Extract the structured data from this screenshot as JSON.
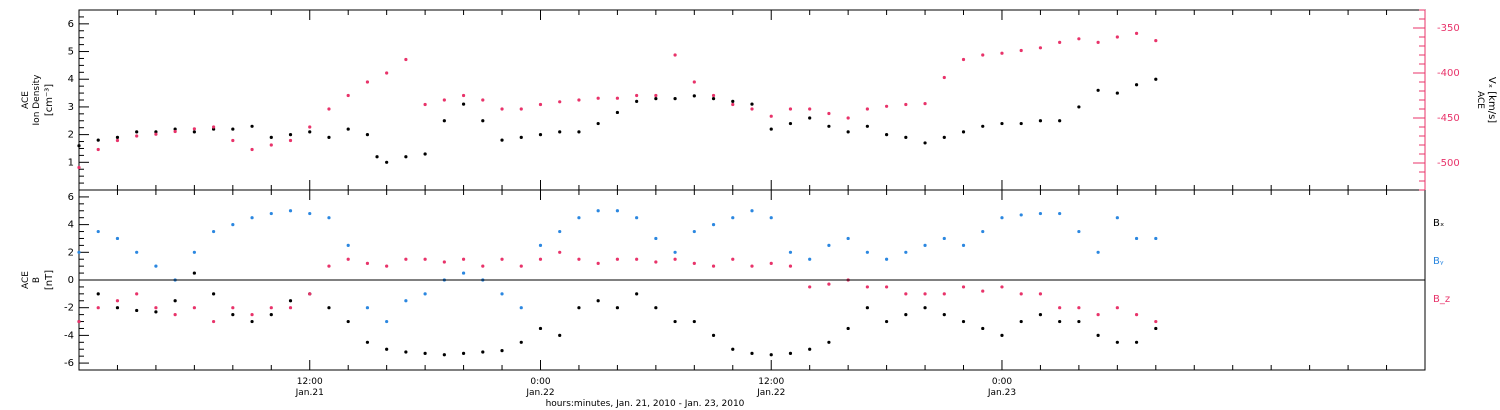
{
  "chart_data": [
    {
      "type": "scatter",
      "panel": "top",
      "left_axis": {
        "label_lines": [
          "ACE",
          "Ion Density"
        ],
        "units": "[cm⁻³]",
        "ylim": [
          0,
          6.5
        ],
        "ticks": [
          1,
          2,
          3,
          4,
          5,
          6
        ],
        "tick_labels": [
          "1",
          "2",
          "3",
          "4",
          "5",
          "6"
        ],
        "color": "#000000"
      },
      "right_axis": {
        "label_lines": [
          "ACE"
        ],
        "units": "Vₓ [km/s]",
        "ylim": [
          -530,
          -330
        ],
        "ticks": [
          -500,
          -450,
          -400,
          -350
        ],
        "tick_labels": [
          "-500",
          "-450",
          "-400",
          "-350"
        ],
        "color": "#e8336a"
      },
      "series": [
        {
          "color": "#000000",
          "axis": "left",
          "x": [
            0,
            1,
            2,
            3,
            4,
            5,
            6,
            7,
            8,
            9,
            10,
            11,
            12,
            13,
            14,
            15,
            15.5,
            16,
            17,
            18,
            19,
            20,
            21,
            22,
            23,
            24,
            25,
            26,
            27,
            28,
            29,
            30,
            31,
            32,
            33,
            34,
            35,
            36,
            37,
            38,
            39,
            40,
            41,
            42,
            43,
            44,
            45,
            46,
            47,
            48,
            49,
            50,
            51,
            52,
            53,
            54,
            55,
            56
          ],
          "y": [
            1.6,
            1.8,
            1.9,
            2.1,
            2.1,
            2.2,
            2.1,
            2.2,
            2.2,
            2.3,
            1.9,
            2.0,
            2.1,
            1.9,
            2.2,
            2.0,
            1.2,
            1.0,
            1.2,
            1.3,
            2.5,
            3.1,
            2.5,
            1.8,
            1.9,
            2.0,
            2.1,
            2.1,
            2.4,
            2.8,
            3.2,
            3.3,
            3.3,
            3.4,
            3.3,
            3.2,
            3.1,
            2.2,
            2.4,
            2.6,
            2.3,
            2.1,
            2.3,
            2.0,
            1.9,
            1.7,
            1.9,
            2.1,
            2.3,
            2.4,
            2.4,
            2.5,
            2.5,
            3.0,
            3.6,
            3.5,
            3.8,
            4.0
          ]
        },
        {
          "color": "#e8336a",
          "axis": "right",
          "x": [
            0,
            1,
            2,
            3,
            4,
            5,
            6,
            7,
            8,
            9,
            10,
            11,
            12,
            13,
            14,
            15,
            16,
            17,
            18,
            19,
            20,
            21,
            22,
            23,
            24,
            25,
            26,
            27,
            28,
            29,
            30,
            31,
            32,
            33,
            34,
            35,
            36,
            37,
            38,
            39,
            40,
            41,
            42,
            43,
            44,
            45,
            46,
            47,
            48,
            49,
            50,
            51,
            52,
            53,
            54,
            55,
            56
          ],
          "y": [
            -505,
            -485,
            -475,
            -470,
            -468,
            -465,
            -462,
            -460,
            -475,
            -485,
            -480,
            -475,
            -460,
            -440,
            -425,
            -410,
            -400,
            -385,
            -435,
            -430,
            -425,
            -430,
            -440,
            -440,
            -435,
            -432,
            -430,
            -428,
            -428,
            -425,
            -425,
            -380,
            -410,
            -425,
            -435,
            -440,
            -448,
            -440,
            -440,
            -445,
            -450,
            -440,
            -437,
            -435,
            -434,
            -405,
            -385,
            -380,
            -378,
            -375,
            -372,
            -366,
            -362,
            -366,
            -360,
            -356,
            -364
          ]
        }
      ]
    },
    {
      "type": "scatter",
      "panel": "bottom",
      "y_axis": {
        "label_lines": [
          "ACE",
          "B"
        ],
        "units": "[nT]",
        "ylim": [
          -6.5,
          6.5
        ],
        "ticks": [
          -6,
          -4,
          -2,
          0,
          2,
          4,
          6
        ],
        "tick_labels": [
          "-6",
          "-4",
          "-2",
          "0",
          "2",
          "4",
          "6"
        ]
      },
      "legend_position": "right",
      "series": [
        {
          "name": "Bₓ",
          "color": "#000000",
          "x": [
            0,
            1,
            2,
            3,
            4,
            5,
            6,
            7,
            8,
            9,
            10,
            11,
            12,
            13,
            14,
            15,
            16,
            17,
            18,
            19,
            20,
            21,
            22,
            23,
            24,
            25,
            26,
            27,
            28,
            29,
            30,
            31,
            32,
            33,
            34,
            35,
            36,
            37,
            38,
            39,
            40,
            41,
            42,
            43,
            44,
            45,
            46,
            47,
            48,
            49,
            50,
            51,
            52,
            53,
            54,
            55,
            56
          ],
          "y": [
            -3.0,
            -1.0,
            -2.0,
            -2.2,
            -2.3,
            -1.5,
            0.5,
            -1.0,
            -2.5,
            -3.0,
            -2.5,
            -1.5,
            -1.0,
            -2.0,
            -3.0,
            -4.5,
            -5.0,
            -5.2,
            -5.3,
            -5.4,
            -5.3,
            -5.2,
            -5.1,
            -4.5,
            -3.5,
            -4.0,
            -2.0,
            -1.5,
            -2.0,
            -1.0,
            -2.0,
            -3.0,
            -3.0,
            -4.0,
            -5.0,
            -5.3,
            -5.4,
            -5.3,
            -5.0,
            -4.5,
            -3.5,
            -2.0,
            -3.0,
            -2.5,
            -2.0,
            -2.5,
            -3.0,
            -3.5,
            -4.0,
            -3.0,
            -2.5,
            -3.0,
            -3.0,
            -4.0,
            -4.5,
            -4.5,
            -3.5
          ]
        },
        {
          "name": "Bᵧ",
          "color": "#2b87e0",
          "x": [
            0,
            1,
            2,
            3,
            4,
            5,
            6,
            7,
            8,
            9,
            10,
            11,
            12,
            13,
            14,
            15,
            16,
            17,
            18,
            19,
            20,
            21,
            22,
            23,
            24,
            25,
            26,
            27,
            28,
            29,
            30,
            31,
            32,
            33,
            34,
            35,
            36,
            37,
            38,
            39,
            40,
            41,
            42,
            43,
            44,
            45,
            46,
            47,
            48,
            49,
            50,
            51,
            52,
            53,
            54,
            55,
            56
          ],
          "y": [
            2.0,
            3.5,
            3.0,
            2.0,
            1.0,
            0.0,
            2.0,
            3.5,
            4.0,
            4.5,
            4.8,
            5.0,
            4.8,
            4.5,
            2.5,
            -2.0,
            -3.0,
            -1.5,
            -1.0,
            0.0,
            0.5,
            0.0,
            -1.0,
            -2.0,
            2.5,
            3.5,
            4.5,
            5.0,
            5.0,
            4.5,
            3.0,
            2.0,
            3.5,
            4.0,
            4.5,
            5.0,
            4.5,
            2.0,
            1.5,
            2.5,
            3.0,
            2.0,
            1.5,
            2.0,
            2.5,
            3.0,
            2.5,
            3.5,
            4.5,
            4.7,
            4.8,
            4.8,
            3.5,
            2.0,
            4.5,
            3.0,
            3.0
          ]
        },
        {
          "name": "B_z",
          "color": "#e8336a",
          "x": [
            0,
            1,
            2,
            3,
            4,
            5,
            6,
            7,
            8,
            9,
            10,
            11,
            12,
            13,
            14,
            15,
            16,
            17,
            18,
            19,
            20,
            21,
            22,
            23,
            24,
            25,
            26,
            27,
            28,
            29,
            30,
            31,
            32,
            33,
            34,
            35,
            36,
            37,
            38,
            39,
            40,
            41,
            42,
            43,
            44,
            45,
            46,
            47,
            48,
            49,
            50,
            51,
            52,
            53,
            54,
            55,
            56
          ],
          "y": [
            -3.0,
            -2.0,
            -1.5,
            -1.0,
            -2.0,
            -2.5,
            -2.0,
            -3.0,
            -2.0,
            -2.5,
            -2.0,
            -2.0,
            -1.0,
            1.0,
            1.5,
            1.2,
            1.0,
            1.5,
            1.5,
            1.3,
            1.5,
            1.0,
            1.5,
            1.0,
            1.5,
            2.0,
            1.5,
            1.2,
            1.5,
            1.5,
            1.3,
            1.5,
            1.2,
            1.0,
            1.5,
            1.0,
            1.2,
            1.0,
            -0.5,
            -0.3,
            0.0,
            -0.5,
            -0.5,
            -1.0,
            -1.0,
            -1.0,
            -0.5,
            -0.8,
            -0.5,
            -1.0,
            -1.0,
            -2.0,
            -2.0,
            -2.5,
            -2.0,
            -2.5,
            -3.0
          ]
        }
      ]
    }
  ],
  "x_axis": {
    "xlim": [
      0,
      70
    ],
    "minor_tick_step": 2,
    "major_ticks": [
      {
        "x": 12,
        "label_time": "12:00",
        "label_date": "Jan.21"
      },
      {
        "x": 24,
        "label_time": "0:00",
        "label_date": "Jan.22"
      },
      {
        "x": 36,
        "label_time": "12:00",
        "label_date": "Jan.22"
      },
      {
        "x": 48,
        "label_time": "0:00",
        "label_date": "Jan.23"
      }
    ],
    "title": "hours:minutes, Jan. 21, 2010 - Jan. 23, 2010"
  }
}
